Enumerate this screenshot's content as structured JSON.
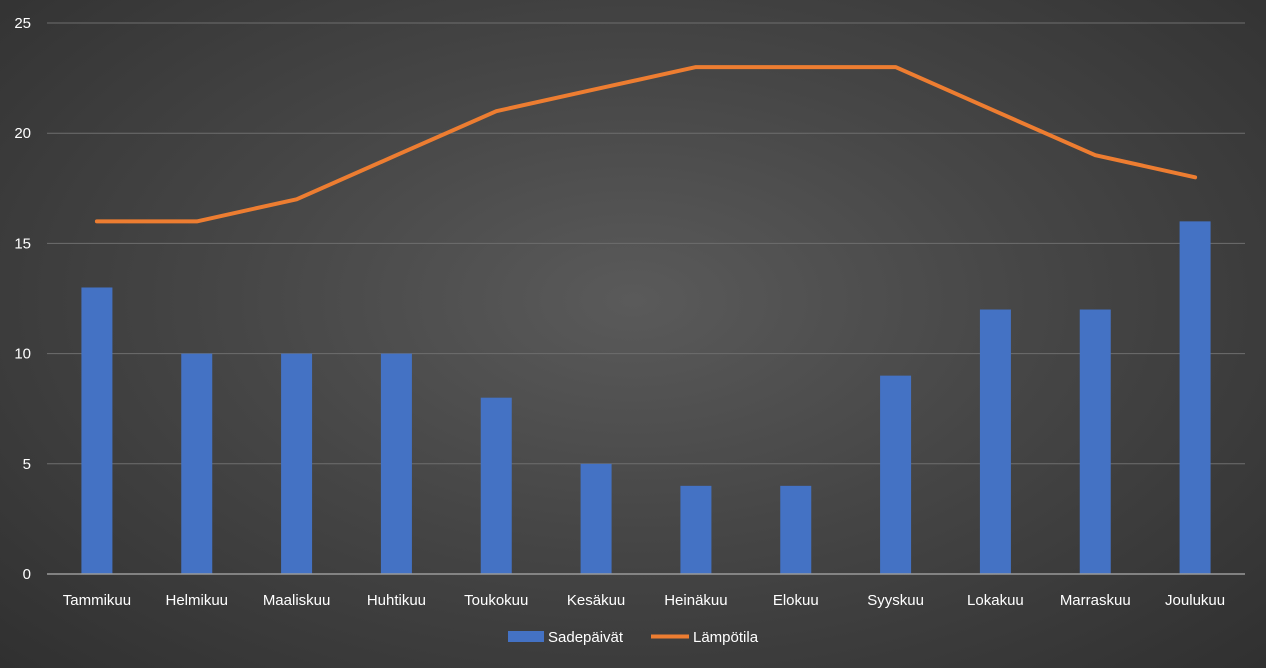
{
  "chart_data": {
    "type": "bar",
    "categories": [
      "Tammikuu",
      "Helmikuu",
      "Maaliskuu",
      "Huhtikuu",
      "Toukokuu",
      "Kesäkuu",
      "Heinäkuu",
      "Elokuu",
      "Syyskuu",
      "Lokakuu",
      "Marraskuu",
      "Joulukuu"
    ],
    "series": [
      {
        "name": "Sadepäivät",
        "type": "bar",
        "color": "#4472c4",
        "values": [
          13,
          10,
          10,
          10,
          8,
          5,
          4,
          4,
          9,
          12,
          12,
          16
        ]
      },
      {
        "name": "Lämpötila",
        "type": "line",
        "color": "#ed7d31",
        "values": [
          16,
          16,
          17,
          19,
          21,
          22,
          23,
          23,
          23,
          21,
          19,
          18
        ]
      }
    ],
    "ylim": [
      0,
      25
    ],
    "yticks": [
      0,
      5,
      10,
      15,
      20,
      25
    ],
    "grid": true,
    "legend": "bottom-center",
    "title": "",
    "xlabel": "",
    "ylabel": ""
  }
}
